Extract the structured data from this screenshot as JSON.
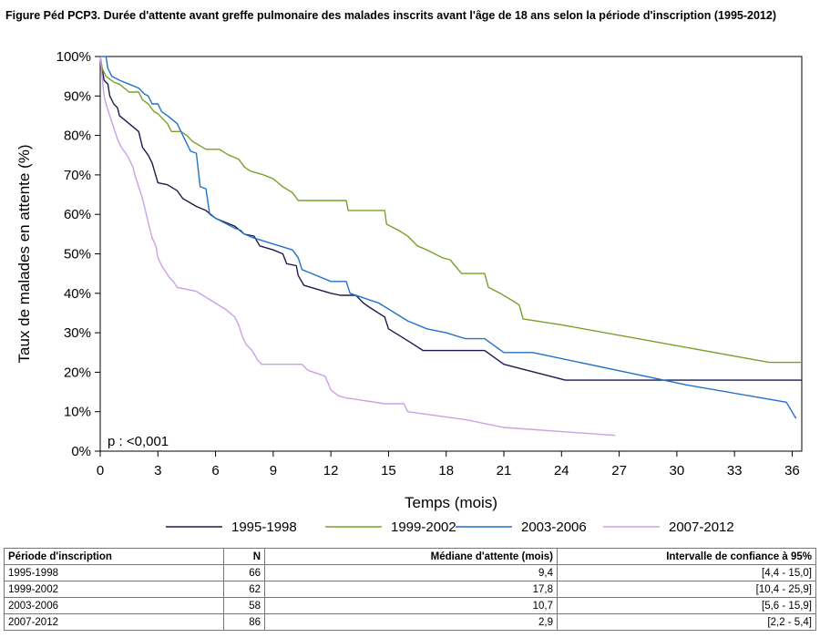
{
  "title": "Figure Péd PCP3. Durée d'attente avant greffe pulmonaire des malades inscrits avant l'âge de 18 ans selon la période d'inscription (1995-2012)",
  "chart_data": {
    "type": "line",
    "xlabel": "Temps (mois)",
    "ylabel": "Taux de malades en attente (%)",
    "xlim": [
      0,
      36.5
    ],
    "ylim": [
      0,
      100
    ],
    "x_ticks": [
      0,
      3,
      6,
      9,
      12,
      15,
      18,
      21,
      24,
      27,
      30,
      33,
      36
    ],
    "y_ticks": [
      0,
      10,
      20,
      30,
      40,
      50,
      60,
      70,
      80,
      90,
      100
    ],
    "y_tick_labels": [
      "0%",
      "10%",
      "20%",
      "30%",
      "40%",
      "50%",
      "60%",
      "70%",
      "80%",
      "90%",
      "100%"
    ],
    "annotation": "p : <0,001",
    "grid": false,
    "legend_position": "bottom",
    "series": [
      {
        "name": "1995-1998",
        "color": "#1b1b4d",
        "points": [
          [
            0,
            100
          ],
          [
            0.1,
            97
          ],
          [
            0.2,
            94
          ],
          [
            0.4,
            93
          ],
          [
            0.5,
            90
          ],
          [
            0.7,
            88
          ],
          [
            0.9,
            87
          ],
          [
            1,
            85
          ],
          [
            1.5,
            83
          ],
          [
            2,
            81
          ],
          [
            2.1,
            79
          ],
          [
            2.2,
            77
          ],
          [
            2.5,
            75
          ],
          [
            2.7,
            73
          ],
          [
            3,
            68
          ],
          [
            3.5,
            67.5
          ],
          [
            4,
            66
          ],
          [
            4.3,
            64
          ],
          [
            5,
            62
          ],
          [
            5.5,
            61
          ],
          [
            6,
            59
          ],
          [
            6.5,
            58
          ],
          [
            7,
            57
          ],
          [
            7.5,
            55
          ],
          [
            8,
            54.5
          ],
          [
            8.3,
            52
          ],
          [
            9,
            51
          ],
          [
            9.5,
            50
          ],
          [
            9.7,
            47.5
          ],
          [
            10.2,
            47
          ],
          [
            10.3,
            44.5
          ],
          [
            10.6,
            42
          ],
          [
            12,
            40
          ],
          [
            12.5,
            39.5
          ],
          [
            13.3,
            39.5
          ],
          [
            13.7,
            37.5
          ],
          [
            14,
            36.5
          ],
          [
            14.8,
            34
          ],
          [
            15,
            31
          ],
          [
            15.5,
            29.5
          ],
          [
            16,
            28
          ],
          [
            16.8,
            25.5
          ],
          [
            20,
            25.5
          ],
          [
            21,
            22
          ],
          [
            24.2,
            18
          ],
          [
            36.5,
            18
          ]
        ]
      },
      {
        "name": "1999-2002",
        "color": "#7aa02a",
        "points": [
          [
            0,
            100
          ],
          [
            0.1,
            97
          ],
          [
            0.3,
            95
          ],
          [
            0.7,
            93.5
          ],
          [
            1,
            93
          ],
          [
            1.5,
            91
          ],
          [
            2,
            91
          ],
          [
            2.2,
            89
          ],
          [
            2.5,
            88
          ],
          [
            2.8,
            86
          ],
          [
            3,
            85.5
          ],
          [
            3.3,
            84
          ],
          [
            3.5,
            83
          ],
          [
            3.7,
            81
          ],
          [
            4.2,
            81
          ],
          [
            4.5,
            80
          ],
          [
            4.8,
            78.5
          ],
          [
            5.5,
            76.5
          ],
          [
            6.2,
            76.5
          ],
          [
            6.7,
            75
          ],
          [
            7.2,
            74
          ],
          [
            7.5,
            72
          ],
          [
            7.8,
            71
          ],
          [
            8.5,
            70
          ],
          [
            9,
            69
          ],
          [
            9.5,
            67
          ],
          [
            10,
            65.5
          ],
          [
            10.3,
            63.5
          ],
          [
            12.8,
            63.5
          ],
          [
            12.9,
            61
          ],
          [
            14.8,
            61
          ],
          [
            14.9,
            57.5
          ],
          [
            15.5,
            56
          ],
          [
            16,
            54.5
          ],
          [
            16.5,
            52
          ],
          [
            17,
            51
          ],
          [
            17.8,
            49
          ],
          [
            18.2,
            48.5
          ],
          [
            18.8,
            45
          ],
          [
            20,
            45
          ],
          [
            20.2,
            41.5
          ],
          [
            20.8,
            40
          ],
          [
            21.5,
            38
          ],
          [
            21.8,
            37
          ],
          [
            22,
            33.5
          ],
          [
            24,
            32
          ],
          [
            34.8,
            22.5
          ],
          [
            36.5,
            22.5
          ]
        ]
      },
      {
        "name": "2003-2006",
        "color": "#2272c8",
        "points": [
          [
            0,
            100
          ],
          [
            0.3,
            100
          ],
          [
            0.4,
            97
          ],
          [
            0.6,
            95
          ],
          [
            1,
            94
          ],
          [
            1.5,
            93
          ],
          [
            2,
            92
          ],
          [
            2.3,
            90.5
          ],
          [
            2.5,
            90
          ],
          [
            2.7,
            88
          ],
          [
            3,
            88
          ],
          [
            3.2,
            86
          ],
          [
            3.5,
            85
          ],
          [
            4,
            83
          ],
          [
            4.3,
            80
          ],
          [
            4.5,
            78
          ],
          [
            4.7,
            76
          ],
          [
            5,
            75.5
          ],
          [
            5.2,
            67
          ],
          [
            5.5,
            66.5
          ],
          [
            5.7,
            60
          ],
          [
            6,
            59
          ],
          [
            7,
            56.5
          ],
          [
            7.3,
            56
          ],
          [
            7.5,
            55
          ],
          [
            8,
            54
          ],
          [
            10,
            51
          ],
          [
            10.3,
            49
          ],
          [
            10.5,
            46
          ],
          [
            11,
            45
          ],
          [
            12,
            43
          ],
          [
            12.8,
            43
          ],
          [
            13,
            40
          ],
          [
            14.5,
            37.5
          ],
          [
            15.5,
            34.5
          ],
          [
            16,
            33
          ],
          [
            17,
            31
          ],
          [
            18,
            30
          ],
          [
            19,
            28.5
          ],
          [
            20,
            28.5
          ],
          [
            21,
            25
          ],
          [
            22.5,
            25
          ],
          [
            30.5,
            16.8
          ],
          [
            35.7,
            12.4
          ],
          [
            36.2,
            8.3
          ]
        ]
      },
      {
        "name": "2007-2012",
        "color": "#c9a2e4",
        "points": [
          [
            0,
            100
          ],
          [
            0.1,
            95
          ],
          [
            0.2,
            90
          ],
          [
            0.3,
            88
          ],
          [
            0.5,
            85
          ],
          [
            0.7,
            82
          ],
          [
            0.9,
            79
          ],
          [
            1.1,
            77
          ],
          [
            1.4,
            75
          ],
          [
            1.7,
            72
          ],
          [
            1.8,
            70
          ],
          [
            2.0,
            67
          ],
          [
            2.2,
            64
          ],
          [
            2.3,
            62
          ],
          [
            2.5,
            58
          ],
          [
            2.7,
            54
          ],
          [
            2.9,
            52
          ],
          [
            3.0,
            49
          ],
          [
            3.2,
            47
          ],
          [
            3.4,
            45.5
          ],
          [
            3.6,
            44
          ],
          [
            3.8,
            43
          ],
          [
            4.0,
            41.5
          ],
          [
            5.0,
            40.5
          ],
          [
            5.5,
            39
          ],
          [
            6,
            37.5
          ],
          [
            6.5,
            36
          ],
          [
            7.0,
            34
          ],
          [
            7.2,
            32
          ],
          [
            7.4,
            29
          ],
          [
            7.6,
            27
          ],
          [
            7.9,
            25.5
          ],
          [
            8.2,
            23
          ],
          [
            8.4,
            22
          ],
          [
            10.5,
            22
          ],
          [
            10.8,
            20.5
          ],
          [
            11.7,
            19
          ],
          [
            12.0,
            15.5
          ],
          [
            12.4,
            14
          ],
          [
            12.8,
            13.5
          ],
          [
            14.8,
            12
          ],
          [
            15.8,
            12
          ],
          [
            16,
            10
          ],
          [
            19,
            8
          ],
          [
            21,
            6
          ],
          [
            26.8,
            4
          ]
        ]
      }
    ]
  },
  "table": {
    "headers": [
      "Période d'inscription",
      "N",
      "Médiane d'attente (mois)",
      "Intervalle de confiance à 95%"
    ],
    "rows": [
      [
        "1995-1998",
        "66",
        "9,4",
        "[4,4 - 15,0]"
      ],
      [
        "1999-2002",
        "62",
        "17,8",
        "[10,4 - 25,9]"
      ],
      [
        "2003-2006",
        "58",
        "10,7",
        "[5,6 - 15,9]"
      ],
      [
        "2007-2012",
        "86",
        "2,9",
        "[2,2 - 5,4]"
      ]
    ]
  }
}
